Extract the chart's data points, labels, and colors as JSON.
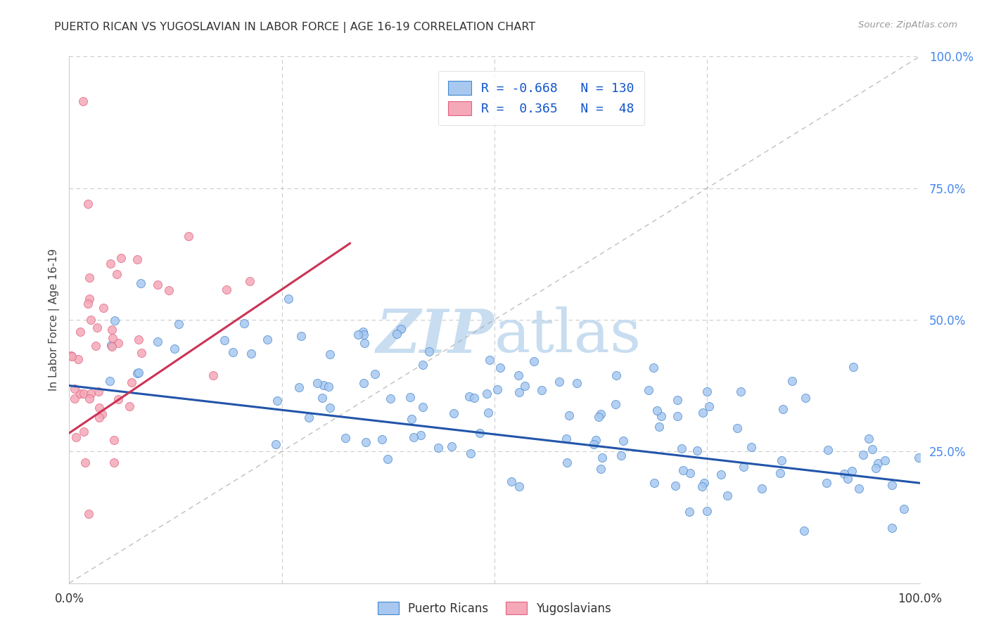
{
  "title": "PUERTO RICAN VS YUGOSLAVIAN IN LABOR FORCE | AGE 16-19 CORRELATION CHART",
  "source_text": "Source: ZipAtlas.com",
  "ylabel": "In Labor Force | Age 16-19",
  "blue_R": -0.668,
  "blue_N": 130,
  "pink_R": 0.365,
  "pink_N": 48,
  "blue_fill": "#a8c8f0",
  "pink_fill": "#f4a8b8",
  "blue_edge": "#4488cc",
  "pink_edge": "#e06080",
  "blue_line": "#2255aa",
  "pink_line": "#cc3355",
  "legend_blue_label": "Puerto Ricans",
  "legend_pink_label": "Yugoslavians",
  "blue_line_x0": 0.0,
  "blue_line_y0": 0.375,
  "blue_line_x1": 1.0,
  "blue_line_y1": 0.19,
  "pink_line_x0": 0.0,
  "pink_line_y0": 0.285,
  "pink_line_x1": 0.33,
  "pink_line_y1": 0.645,
  "xlim": [
    0.0,
    1.0
  ],
  "ylim": [
    0.0,
    1.0
  ],
  "grid_color": "#cccccc",
  "title_color": "#333333",
  "right_tick_color": "#4488ee",
  "watermark_color": "#c8ddf0",
  "background_color": "#ffffff"
}
